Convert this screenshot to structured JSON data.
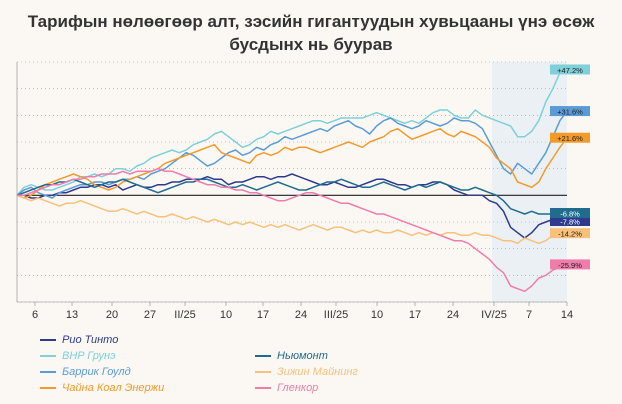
{
  "title_lines": [
    "Тарифын нөлөөгөөр алт, зэсийн гигантуудын хувьцааны үнэ өсөж",
    "бусдынх нь буурав"
  ],
  "chart_data": {
    "type": "line",
    "title": "Тарифын нөлөөгөөр алт, зэсийн гигантуудын хувьцааны үнэ өсөж бусдынх нь буурав",
    "x_tick_labels": [
      "6",
      "13",
      "20",
      "27",
      "II/25",
      "10",
      "17",
      "24",
      "III/25",
      "10",
      "17",
      "24",
      "IV/25",
      "7",
      "14"
    ],
    "ylim": [
      -40,
      50
    ],
    "grid": true,
    "shaded_period": "IV/25 – 14",
    "series": [
      {
        "name": "Рио Тинто",
        "color": "#2f3a8c",
        "end_label": "-7.8%",
        "values": [
          0,
          0,
          -1,
          -1,
          0,
          0,
          1,
          1,
          2,
          3,
          3,
          4,
          4,
          3,
          4,
          2,
          3,
          4,
          3,
          3,
          4,
          4,
          5,
          5,
          6,
          6,
          6,
          7,
          6,
          6,
          4,
          5,
          5,
          6,
          7,
          7,
          6,
          7,
          7,
          8,
          7,
          6,
          5,
          4,
          4,
          5,
          4,
          3,
          3,
          4,
          5,
          6,
          6,
          5,
          4,
          4,
          3,
          4,
          4,
          5,
          5,
          4,
          2,
          1,
          0,
          0,
          0,
          -2,
          -3,
          -6,
          -12,
          -14,
          -16,
          -14,
          -11,
          -10,
          -9,
          -8,
          -7.8
        ]
      },
      {
        "name": "BHP Грунэ",
        "color": "#7fd0d8",
        "end_label": "+47.2%",
        "values": [
          0,
          3,
          4,
          3,
          2,
          2,
          3,
          4,
          5,
          7,
          7,
          8,
          7,
          8,
          10,
          10,
          9,
          11,
          12,
          14,
          15,
          16,
          17,
          16,
          17,
          19,
          20,
          21,
          23,
          24,
          22,
          20,
          18,
          19,
          21,
          22,
          24,
          23,
          24,
          25,
          26,
          27,
          28,
          28,
          27,
          28,
          29,
          29,
          29,
          29,
          30,
          31,
          30,
          29,
          28,
          27,
          28,
          27,
          29,
          31,
          32,
          32,
          30,
          29,
          29,
          32,
          30,
          29,
          28,
          27,
          26,
          22,
          22,
          24,
          28,
          35,
          40,
          46,
          47.2
        ]
      },
      {
        "name": "Баррик Гоулд",
        "color": "#5b9bd5",
        "end_label": "+31.6%",
        "values": [
          0,
          2,
          3,
          1,
          0,
          -1,
          1,
          2,
          3,
          4,
          4,
          5,
          5,
          4,
          5,
          6,
          6,
          7,
          6,
          8,
          9,
          10,
          12,
          14,
          16,
          15,
          13,
          11,
          12,
          14,
          16,
          17,
          15,
          16,
          18,
          17,
          19,
          20,
          22,
          21,
          22,
          23,
          24,
          25,
          24,
          26,
          27,
          28,
          26,
          25,
          23,
          26,
          28,
          29,
          27,
          26,
          25,
          26,
          28,
          27,
          26,
          27,
          29,
          28,
          28,
          27,
          25,
          20,
          15,
          10,
          8,
          12,
          10,
          8,
          12,
          16,
          22,
          28,
          31.6
        ]
      },
      {
        "name": "Чайна Коал Энержи",
        "color": "#f39a2b",
        "end_label": "+21.6%",
        "values": [
          0,
          -1,
          0,
          2,
          4,
          5,
          6,
          7,
          8,
          7,
          6,
          4,
          3,
          2,
          3,
          5,
          6,
          7,
          8,
          9,
          10,
          12,
          13,
          14,
          15,
          16,
          17,
          18,
          19,
          16,
          15,
          14,
          13,
          12,
          15,
          16,
          15,
          16,
          18,
          17,
          18,
          18,
          17,
          16,
          17,
          18,
          19,
          20,
          19,
          18,
          20,
          21,
          22,
          24,
          25,
          23,
          21,
          22,
          23,
          24,
          25,
          23,
          22,
          24,
          23,
          22,
          20,
          18,
          14,
          12,
          10,
          5,
          4,
          3,
          5,
          10,
          14,
          18,
          21.6
        ]
      },
      {
        "name": "Ньюмонт",
        "color": "#1f6c8e",
        "end_label": "-6.8%",
        "values": [
          0,
          1,
          2,
          3,
          4,
          4,
          5,
          5,
          6,
          5,
          4,
          3,
          4,
          5,
          5,
          6,
          5,
          4,
          3,
          2,
          1,
          2,
          3,
          4,
          5,
          5,
          6,
          6,
          5,
          4,
          3,
          3,
          4,
          3,
          2,
          3,
          4,
          5,
          4,
          3,
          2,
          2,
          3,
          4,
          5,
          5,
          6,
          5,
          4,
          3,
          3,
          4,
          5,
          4,
          3,
          2,
          3,
          4,
          3,
          4,
          5,
          4,
          3,
          2,
          2,
          3,
          2,
          1,
          0,
          -2,
          -5,
          -6,
          -7,
          -6,
          -7,
          -7,
          -7,
          -7,
          -6.8
        ]
      },
      {
        "name": "Зижин Майнинг",
        "color": "#f8c07a",
        "end_label": "-14.2%",
        "values": [
          0,
          -1,
          -2,
          -1,
          -2,
          -3,
          -4,
          -3,
          -3,
          -2,
          -3,
          -4,
          -5,
          -6,
          -6,
          -5,
          -6,
          -7,
          -6,
          -7,
          -8,
          -8,
          -7,
          -8,
          -9,
          -8,
          -9,
          -10,
          -9,
          -10,
          -11,
          -10,
          -11,
          -10,
          -11,
          -12,
          -11,
          -12,
          -11,
          -12,
          -13,
          -12,
          -11,
          -12,
          -13,
          -12,
          -12,
          -13,
          -14,
          -13,
          -14,
          -13,
          -14,
          -14,
          -13,
          -14,
          -15,
          -14,
          -15,
          -14,
          -15,
          -14,
          -14,
          -15,
          -15,
          -14,
          -15,
          -15,
          -16,
          -17,
          -17,
          -18,
          -16,
          -17,
          -18,
          -17,
          -15,
          -14,
          -14.2
        ]
      },
      {
        "name": "Гленкор",
        "color": "#f07cab",
        "end_label": "-25.9%",
        "values": [
          0,
          0,
          1,
          2,
          3,
          4,
          4,
          5,
          6,
          6,
          7,
          7,
          8,
          8,
          8,
          9,
          8,
          9,
          9,
          9,
          10,
          9,
          9,
          8,
          7,
          6,
          5,
          4,
          4,
          3,
          3,
          2,
          2,
          1,
          1,
          0,
          -1,
          -2,
          -2,
          -1,
          0,
          1,
          1,
          0,
          -1,
          -2,
          -3,
          -3,
          -4,
          -5,
          -6,
          -7,
          -7,
          -8,
          -9,
          -10,
          -11,
          -12,
          -13,
          -14,
          -15,
          -16,
          -17,
          -17,
          -18,
          -20,
          -22,
          -24,
          -27,
          -29,
          -34,
          -35,
          -36,
          -34,
          -31,
          -30,
          -28,
          -27,
          -25.9
        ]
      }
    ],
    "legend": [
      "Рио Тинто",
      "BHP Грунэ",
      "Баррик Гоулд",
      "Чайна Коал Энержи",
      "Ньюмонт",
      "Зижин Майнинг",
      "Гленкор"
    ]
  }
}
